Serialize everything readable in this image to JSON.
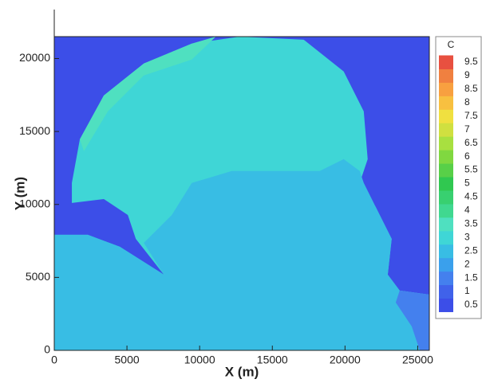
{
  "chart_data": {
    "type": "contour",
    "xlabel": "X (m)",
    "ylabel": "Y (m)",
    "xlim": [
      0,
      25800
    ],
    "ylim": [
      0,
      21500
    ],
    "xticks": [
      0,
      5000,
      10000,
      15000,
      20000,
      25000
    ],
    "yticks": [
      0,
      5000,
      10000,
      15000,
      20000
    ],
    "legend_title": "C",
    "levels": [
      0.5,
      1,
      1.5,
      2,
      2.5,
      3,
      3.5,
      4,
      4.5,
      5,
      5.5,
      6,
      6.5,
      7,
      7.5,
      8,
      8.5,
      9,
      9.5
    ],
    "level_colors": [
      "#3c4ee8",
      "#4062ea",
      "#4480ee",
      "#3aa0ec",
      "#38bde4",
      "#3fd6d6",
      "#4fe0c0",
      "#40d890",
      "#38d070",
      "#30c850",
      "#58d048",
      "#80d840",
      "#a8e040",
      "#d0e040",
      "#f0e040",
      "#f8c040",
      "#f8a040",
      "#f08040",
      "#e85040"
    ],
    "regions": [
      {
        "value": 0.5,
        "x": [
          0,
          25800,
          25800,
          0
        ],
        "y": [
          0,
          0,
          21500,
          21500
        ]
      },
      {
        "value": 3,
        "x": [
          1210,
          1760,
          3410,
          6160,
          9460,
          12760,
          17160,
          19910,
          21290,
          21560,
          21010,
          22110,
          23210,
          22940,
          23760,
          25800,
          25800,
          0,
          0,
          2310,
          4510,
          7540,
          5610,
          5060,
          3410,
          1210
        ],
        "y": [
          11470,
          14470,
          17470,
          19660,
          21020,
          21500,
          21290,
          19110,
          16380,
          13100,
          11470,
          9830,
          7640,
          5190,
          4100,
          3820,
          0,
          0,
          7920,
          7920,
          7100,
          5190,
          7640,
          9280,
          10370,
          10100
        ]
      },
      {
        "value": 2.5,
        "x": [
          0,
          2310,
          4510,
          7540,
          6160,
          8085,
          9460,
          12210,
          18260,
          19910,
          21010,
          21290,
          22110,
          23210,
          22940,
          23760,
          25800,
          25800,
          0
        ],
        "y": [
          7920,
          7920,
          7100,
          5190,
          7370,
          9280,
          11470,
          12290,
          12290,
          13100,
          12290,
          11470,
          9830,
          7640,
          5190,
          4100,
          3820,
          0,
          0
        ]
      },
      {
        "value": 1.5,
        "x": [
          23760,
          25800,
          25800,
          25140,
          24590,
          23490
        ],
        "y": [
          4100,
          3820,
          0,
          0,
          1640,
          3280
        ]
      },
      {
        "value": 3.5,
        "x": [
          1760,
          3410,
          6160,
          9460,
          11110,
          9460,
          6160,
          3685,
          2035
        ],
        "y": [
          14470,
          17470,
          19660,
          21020,
          21500,
          19930,
          18840,
          16380,
          13650
        ]
      }
    ]
  }
}
